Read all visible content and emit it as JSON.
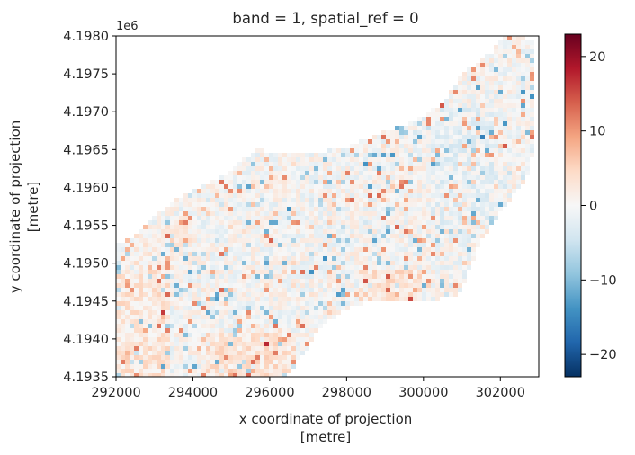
{
  "chart_data": {
    "type": "heatmap",
    "title": "band = 1, spatial_ref = 0",
    "xlabel_line1": "x coordinate of projection",
    "xlabel_line2": "[metre]",
    "ylabel_line1": "y coordinate of projection",
    "ylabel_line2": "[metre]",
    "y_offset_label": "1e6",
    "xlim": [
      292000,
      303000
    ],
    "ylim": [
      4193500,
      4198000
    ],
    "x_ticks": [
      292000,
      294000,
      296000,
      298000,
      300000,
      302000
    ],
    "x_tick_labels": [
      "292000",
      "294000",
      "296000",
      "298000",
      "300000",
      "302000"
    ],
    "y_ticks": [
      4193500,
      4194000,
      4194500,
      4195000,
      4195500,
      4196000,
      4196500,
      4197000,
      4197500,
      4198000
    ],
    "y_tick_labels": [
      "4.1935",
      "4.1940",
      "4.1945",
      "4.1950",
      "4.1955",
      "4.1960",
      "4.1965",
      "4.1970",
      "4.1975",
      "4.1980"
    ],
    "colorbar": {
      "colormap": "RdBu_r",
      "vmin": -23,
      "vmax": 23,
      "ticks": [
        20,
        10,
        0,
        -10,
        -20
      ],
      "tick_labels": [
        "20",
        "10",
        "0",
        "−10",
        "−20"
      ],
      "colors": [
        "#053061",
        "#2166ac",
        "#4393c3",
        "#92c5de",
        "#d1e5f0",
        "#f7f7f7",
        "#fddbc7",
        "#f4a582",
        "#d6604d",
        "#b2182b",
        "#67001f"
      ]
    },
    "data_extent_polygon": [
      [
        292000,
        4195250
      ],
      [
        292400,
        4195350
      ],
      [
        292900,
        4195550
      ],
      [
        293500,
        4195850
      ],
      [
        294200,
        4196000
      ],
      [
        295000,
        4196200
      ],
      [
        295600,
        4196500
      ],
      [
        296700,
        4196450
      ],
      [
        297800,
        4196500
      ],
      [
        298800,
        4196700
      ],
      [
        299700,
        4196850
      ],
      [
        300500,
        4197100
      ],
      [
        301000,
        4197500
      ],
      [
        301800,
        4197800
      ],
      [
        302100,
        4198000
      ],
      [
        302600,
        4198000
      ],
      [
        302900,
        4197900
      ],
      [
        302900,
        4196900
      ],
      [
        302800,
        4196200
      ],
      [
        302200,
        4195800
      ],
      [
        301500,
        4195300
      ],
      [
        301200,
        4194900
      ],
      [
        300900,
        4194550
      ],
      [
        299900,
        4194500
      ],
      [
        298700,
        4194500
      ],
      [
        298000,
        4194400
      ],
      [
        297300,
        4194150
      ],
      [
        296900,
        4193800
      ],
      [
        296400,
        4193500
      ],
      [
        292000,
        4193500
      ]
    ]
  }
}
